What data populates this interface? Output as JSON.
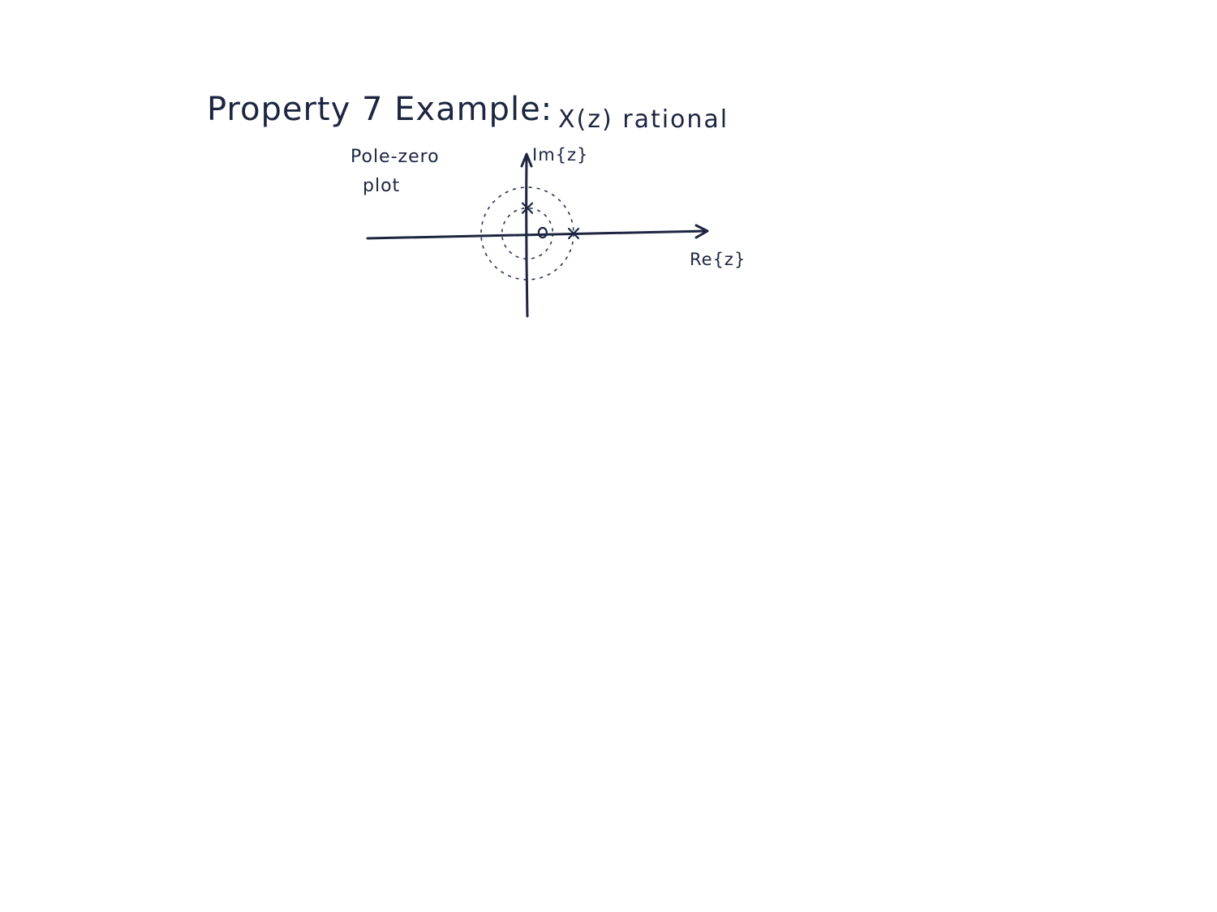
{
  "heading": {
    "title": "Property 7  Example:",
    "subtitle": "X(z)  rational"
  },
  "diagram": {
    "type": "pole-zero plot",
    "note_line1": "Pole-zero",
    "note_line2": "plot",
    "y_axis_label": "Im{z}",
    "x_axis_label": "Re{z}",
    "poles": [
      {
        "re": 1.0,
        "im": 0.0
      },
      {
        "re": 0.0,
        "im": 0.55
      }
    ],
    "zeros": [
      {
        "re": 0.33,
        "im": 0.0
      }
    ],
    "roc_boundaries": [
      {
        "radius": 0.55,
        "style": "dashed"
      },
      {
        "radius": 1.0,
        "style": "dashed"
      }
    ],
    "colors": {
      "ink": "#1d2540"
    }
  }
}
